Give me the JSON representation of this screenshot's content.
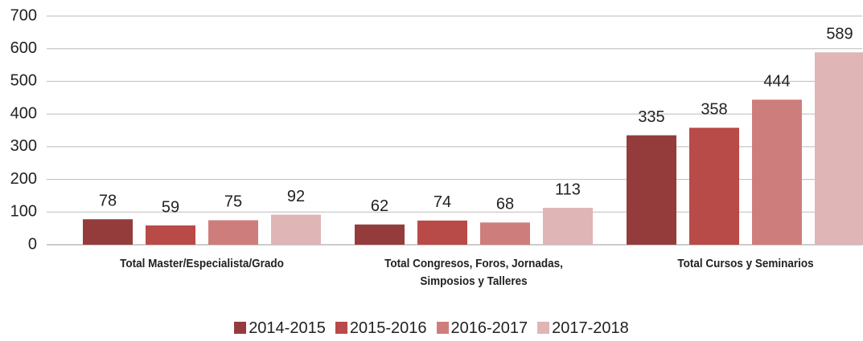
{
  "chart_data": {
    "type": "bar",
    "categories": [
      "Total  Master/Especialista/Grado",
      "Total  Congresos, Foros, Jornadas, Simposios y Talleres",
      "Total  Cursos y Seminarios"
    ],
    "series": [
      {
        "name": "2014-2015",
        "color": "#943c3c",
        "values": [
          78,
          62,
          335
        ]
      },
      {
        "name": "2015-2016",
        "color": "#b84a48",
        "values": [
          59,
          74,
          358
        ]
      },
      {
        "name": "2016-2017",
        "color": "#cd7e7c",
        "values": [
          75,
          68,
          444
        ]
      },
      {
        "name": "2017-2018",
        "color": "#e0b5b5",
        "values": [
          92,
          113,
          589
        ]
      }
    ],
    "ylim": [
      0,
      700
    ],
    "yticks": [
      0,
      100,
      200,
      300,
      400,
      500,
      600,
      700
    ],
    "grid": true,
    "legend": "bottom"
  }
}
